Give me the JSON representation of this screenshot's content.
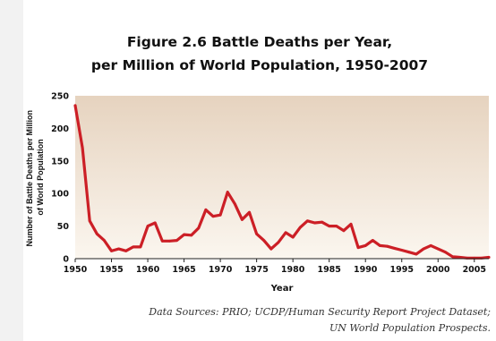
{
  "chart_data": {
    "type": "area",
    "title": "Figure 2.6 Battle Deaths per Year,",
    "subtitle": "per Million of World Population, 1950-2007",
    "xlabel": "Year",
    "ylabel_lines": [
      "Number of Battle Deaths per Million",
      "of World Population"
    ],
    "xlim": [
      1950,
      2007
    ],
    "ylim": [
      0,
      250
    ],
    "xticks": [
      1950,
      1955,
      1960,
      1965,
      1970,
      1975,
      1980,
      1985,
      1990,
      1995,
      2000,
      2005
    ],
    "yticks": [
      0,
      50,
      100,
      150,
      200,
      250
    ],
    "grid": false,
    "series": [
      {
        "color": "#cc1f26",
        "x": [
          1950,
          1951,
          1952,
          1953,
          1954,
          1955,
          1956,
          1957,
          1958,
          1959,
          1960,
          1961,
          1962,
          1963,
          1964,
          1965,
          1966,
          1967,
          1968,
          1969,
          1970,
          1971,
          1972,
          1973,
          1974,
          1975,
          1976,
          1977,
          1978,
          1979,
          1980,
          1981,
          1982,
          1983,
          1984,
          1985,
          1986,
          1987,
          1988,
          1989,
          1990,
          1991,
          1992,
          1993,
          1994,
          1995,
          1996,
          1997,
          1998,
          1999,
          2000,
          2001,
          2002,
          2003,
          2004,
          2005,
          2006,
          2007
        ],
        "values": [
          235,
          170,
          58,
          38,
          28,
          12,
          15,
          12,
          18,
          18,
          50,
          55,
          27,
          27,
          28,
          37,
          36,
          47,
          75,
          65,
          67,
          102,
          84,
          60,
          71,
          38,
          28,
          15,
          25,
          40,
          33,
          48,
          58,
          55,
          56,
          50,
          50,
          43,
          53,
          17,
          20,
          28,
          20,
          19,
          16,
          13,
          10,
          7,
          15,
          20,
          15,
          10,
          3,
          2,
          1,
          1,
          1,
          2
        ]
      }
    ],
    "source_lines": [
      "Data Sources: PRIO; UCDP/Human Security Report Project Dataset;",
      "UN World Population Prospects."
    ],
    "fill_gradient": [
      "#e6d3bf",
      "#fbf6ef"
    ]
  }
}
